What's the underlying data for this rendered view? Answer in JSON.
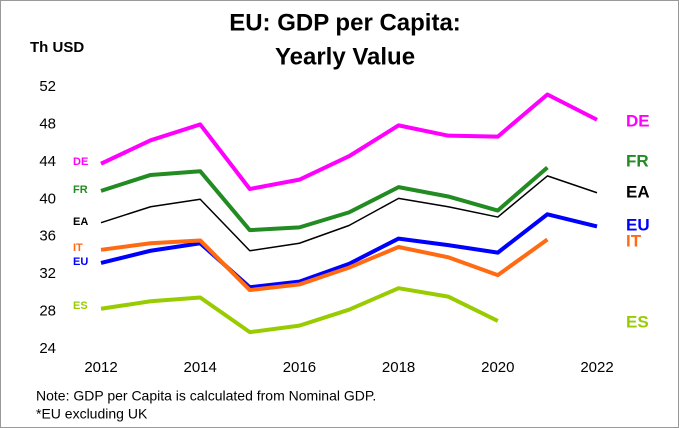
{
  "chart_data": {
    "type": "line",
    "title": [
      "EU: GDP per Capita:",
      "Yearly Value"
    ],
    "y_label": "Th USD",
    "notes": [
      "Note: GDP per Capita is calculated from Nominal GDP.",
      "*EU excluding UK"
    ],
    "x": [
      2012,
      2013,
      2014,
      2015,
      2016,
      2017,
      2018,
      2019,
      2020,
      2021,
      2022
    ],
    "xlim": [
      2012,
      2022
    ],
    "xticks": [
      2012,
      2014,
      2016,
      2018,
      2020,
      2022
    ],
    "ylim": [
      24,
      52
    ],
    "yticks": [
      24,
      28,
      32,
      36,
      40,
      44,
      48,
      52
    ],
    "series": [
      {
        "name": "DE",
        "color": "#ff00ff",
        "values": [
          43.8,
          46.3,
          48.0,
          41.1,
          42.1,
          44.6,
          47.9,
          46.8,
          46.7,
          51.2,
          48.5
        ]
      },
      {
        "name": "FR",
        "color": "#228b22",
        "values": [
          40.9,
          42.6,
          43.0,
          36.7,
          37.0,
          38.6,
          41.3,
          40.3,
          38.8,
          43.4,
          null
        ]
      },
      {
        "name": "EA",
        "color": "#000000",
        "values": [
          37.5,
          39.2,
          40.0,
          34.5,
          35.3,
          37.2,
          40.1,
          39.2,
          38.1,
          42.5,
          40.7
        ]
      },
      {
        "name": "EU",
        "color": "#0000ff",
        "values": [
          33.2,
          34.5,
          35.3,
          30.6,
          31.2,
          33.1,
          35.8,
          35.1,
          34.3,
          38.4,
          37.1
        ]
      },
      {
        "name": "IT",
        "color": "#ff6a13",
        "values": [
          34.6,
          35.3,
          35.6,
          30.3,
          30.9,
          32.7,
          34.9,
          33.8,
          31.9,
          35.7,
          null
        ]
      },
      {
        "name": "ES",
        "color": "#99cc00",
        "values": [
          28.3,
          29.1,
          29.5,
          25.8,
          26.5,
          28.2,
          30.5,
          29.6,
          27.0,
          null,
          null
        ]
      }
    ]
  }
}
